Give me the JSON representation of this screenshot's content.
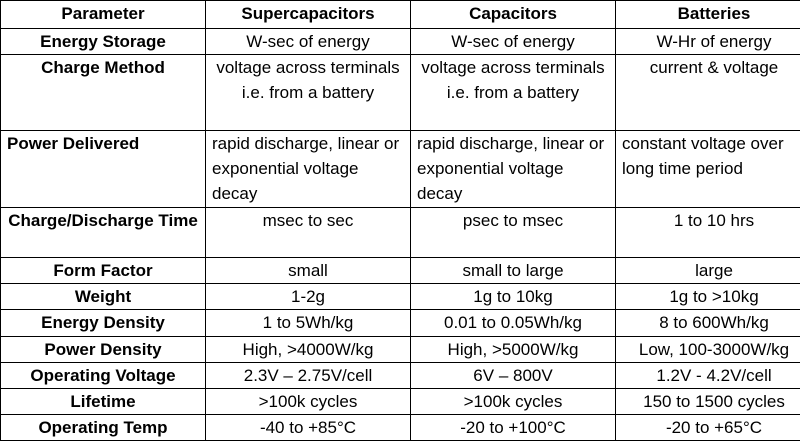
{
  "table": {
    "header": [
      "Parameter",
      "Supercapacitors",
      "Capacitors",
      "Batteries"
    ],
    "rows": [
      [
        "Energy Storage",
        "W-sec of energy",
        "W-sec of energy",
        "W-Hr of energy"
      ],
      [
        "Charge Method",
        "voltage across terminals i.e. from a battery",
        "voltage across terminals i.e. from a battery",
        "current & voltage"
      ],
      [
        "Power Delivered",
        "rapid discharge, linear or exponential voltage decay",
        "rapid discharge, linear or exponential voltage decay",
        "constant voltage over long time period"
      ],
      [
        "Charge/Discharge Time",
        "msec to sec",
        "psec to msec",
        "1 to 10 hrs"
      ],
      [
        "Form Factor",
        "small",
        "small  to large",
        "large"
      ],
      [
        "Weight",
        "1-2g",
        "1g to 10kg",
        "1g to >10kg"
      ],
      [
        "Energy Density",
        "1 to 5Wh/kg",
        "0.01 to 0.05Wh/kg",
        "8 to 600Wh/kg"
      ],
      [
        "Power Density",
        "High, >4000W/kg",
        "High, >5000W/kg",
        "Low, 100-3000W/kg"
      ],
      [
        "Operating Voltage",
        "2.3V – 2.75V/cell",
        "6V – 800V",
        "1.2V - 4.2V/cell"
      ],
      [
        "Lifetime",
        ">100k cycles",
        ">100k cycles",
        "150 to 1500 cycles"
      ],
      [
        "Operating Temp",
        "-40 to +85°C",
        "-20 to +100°C",
        "-20 to +65°C"
      ]
    ]
  }
}
